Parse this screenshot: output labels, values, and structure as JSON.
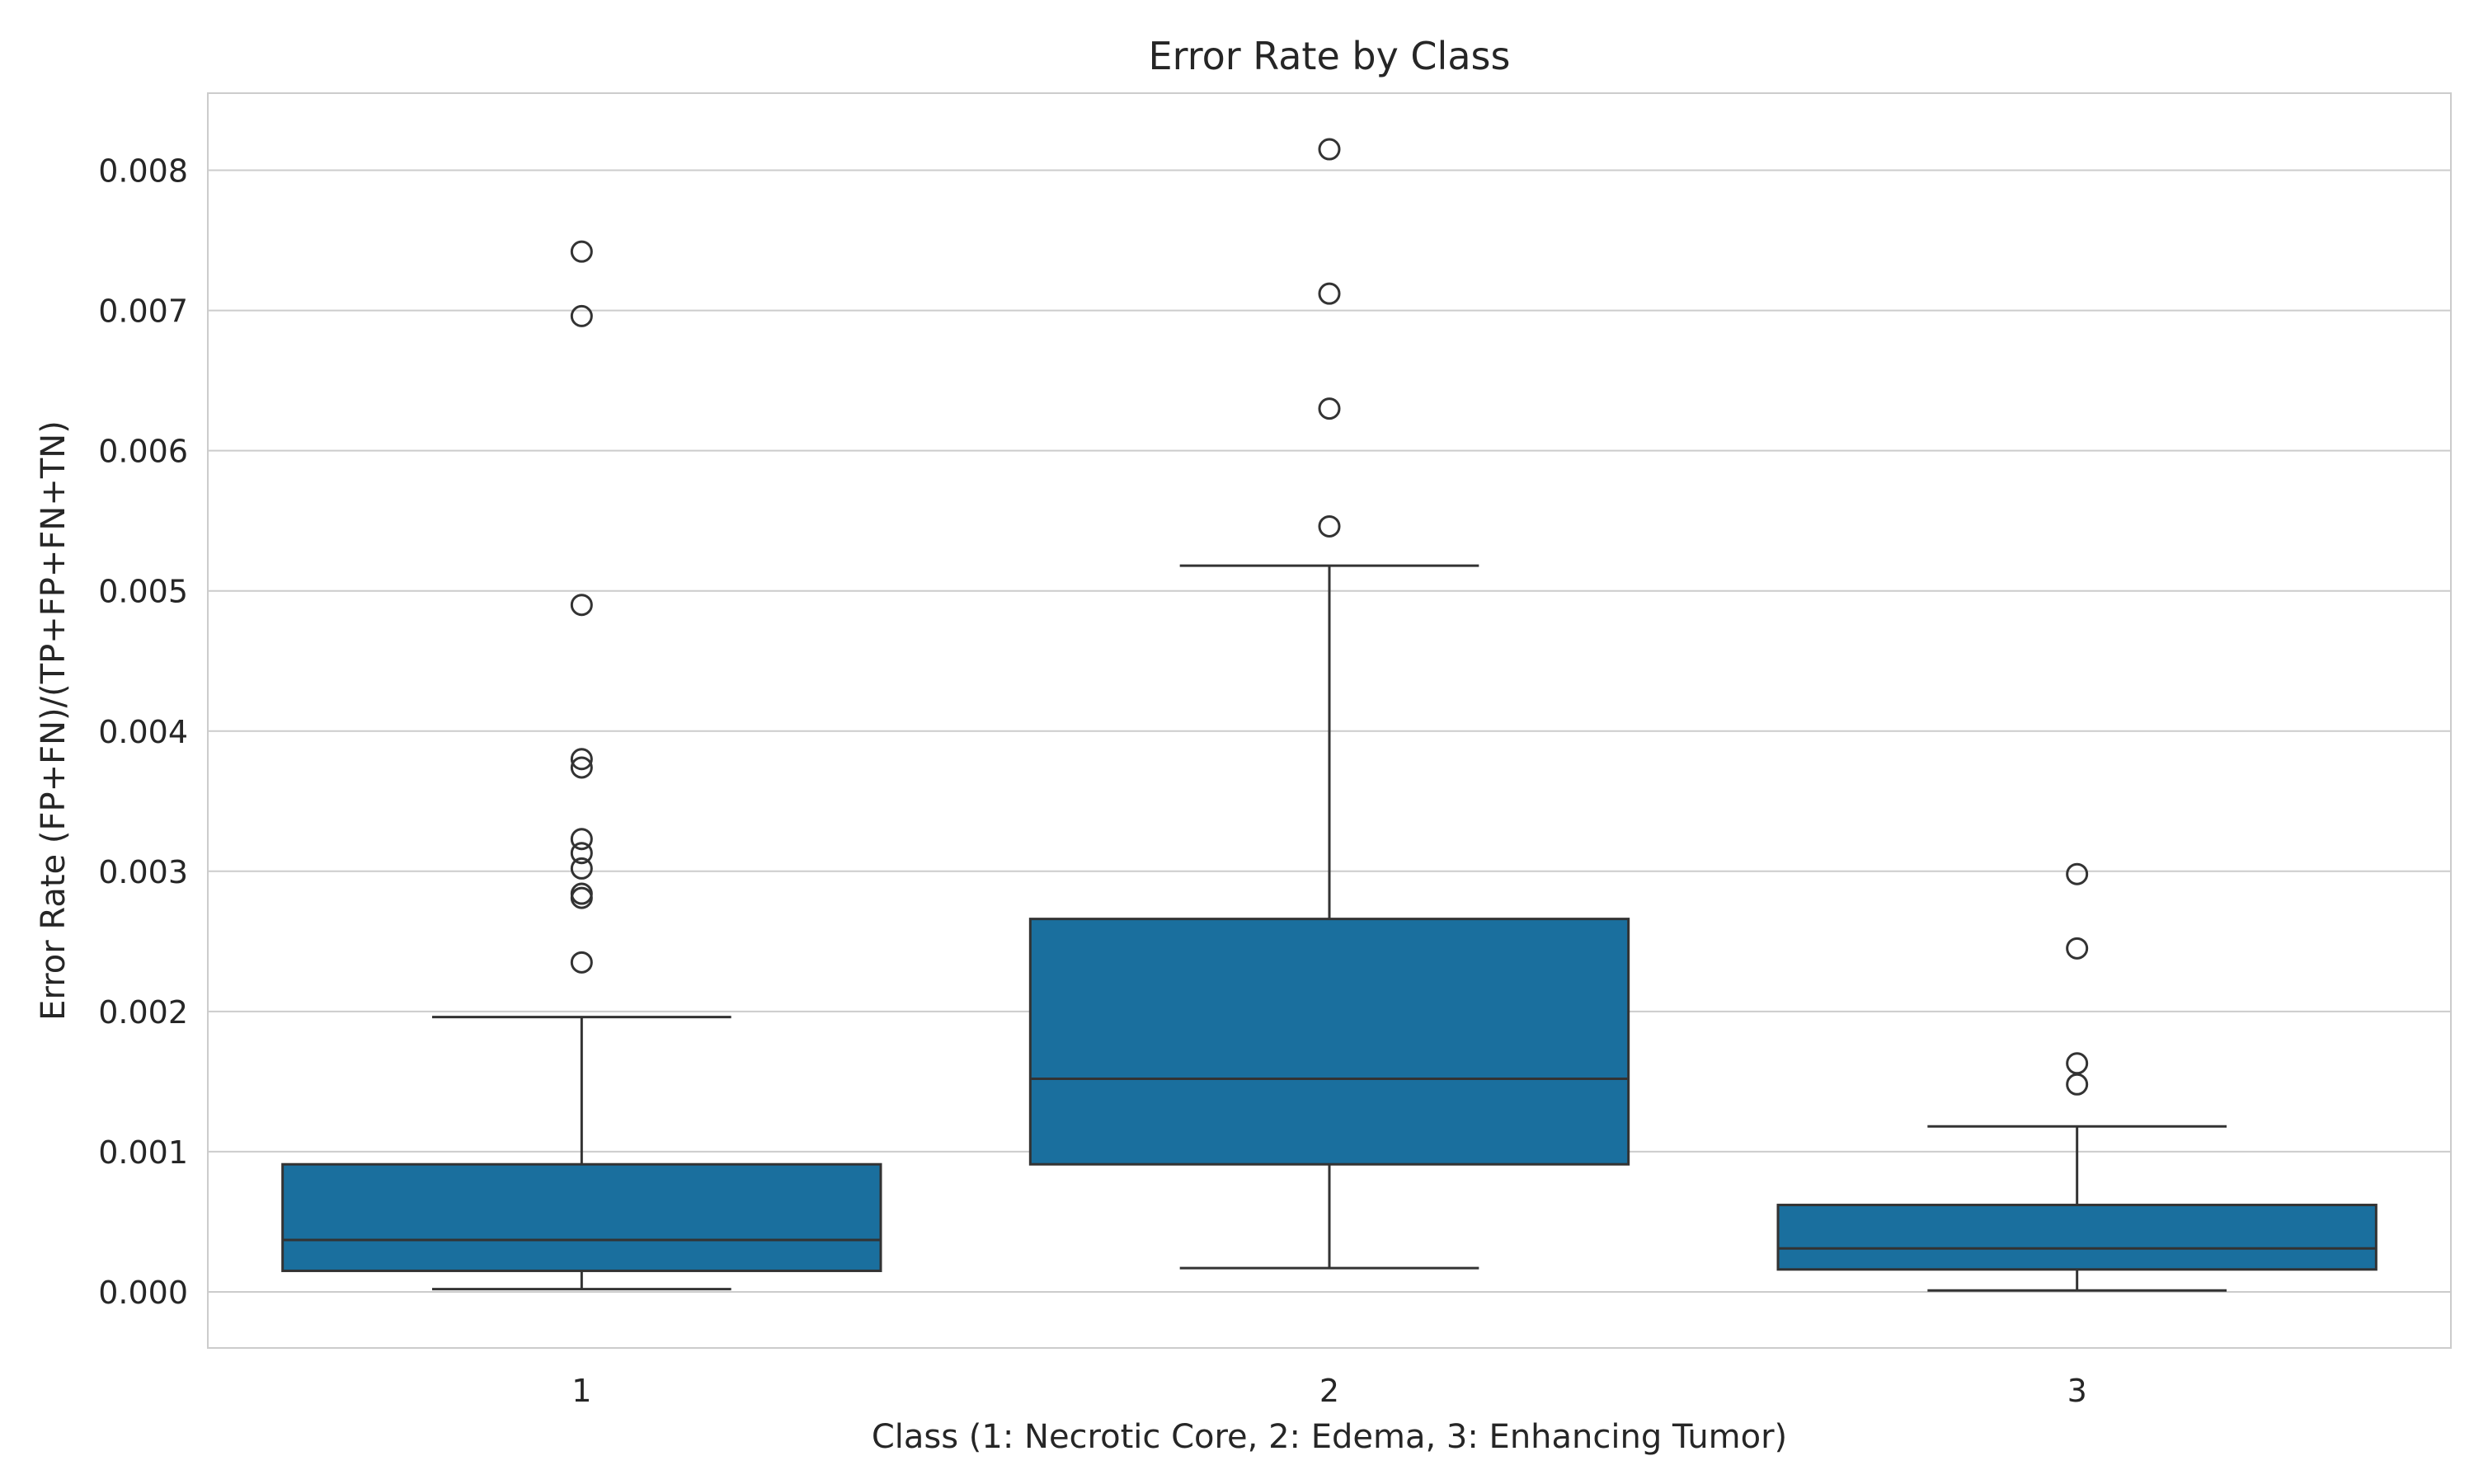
{
  "chart_data": {
    "type": "box",
    "title": "Error Rate by Class",
    "xlabel": "Class (1: Necrotic Core, 2: Edema, 3: Enhancing Tumor)",
    "ylabel": "Error Rate (FP+FN)/(TP+FP+FN+TN)",
    "categories": [
      "1",
      "2",
      "3"
    ],
    "ylim": [
      -0.0004,
      0.00855
    ],
    "yticks": [
      0.0,
      0.001,
      0.002,
      0.003,
      0.004,
      0.005,
      0.006,
      0.007,
      0.008
    ],
    "ytick_labels": [
      "0.000",
      "0.001",
      "0.002",
      "0.003",
      "0.004",
      "0.005",
      "0.006",
      "0.007",
      "0.008"
    ],
    "grid": true,
    "box_color": "#1a6f9e",
    "edge_color": "#333333",
    "boxes": [
      {
        "category": "1",
        "whisker_low": 2e-05,
        "q1": 0.00015,
        "median": 0.00037,
        "q3": 0.00091,
        "whisker_high": 0.00196,
        "outliers": [
          0.00742,
          0.00696,
          0.0049,
          0.0038,
          0.00374,
          0.00323,
          0.00313,
          0.00302,
          0.00284,
          0.00281,
          0.00235
        ]
      },
      {
        "category": "2",
        "whisker_low": 0.00017,
        "q1": 0.00091,
        "median": 0.00152,
        "q3": 0.00266,
        "whisker_high": 0.00518,
        "outliers": [
          0.00815,
          0.00712,
          0.0063,
          0.00546
        ]
      },
      {
        "category": "3",
        "whisker_low": 1e-05,
        "q1": 0.00016,
        "median": 0.00031,
        "q3": 0.00062,
        "whisker_high": 0.00118,
        "outliers": [
          0.00298,
          0.00245,
          0.00163,
          0.00148
        ]
      }
    ]
  }
}
